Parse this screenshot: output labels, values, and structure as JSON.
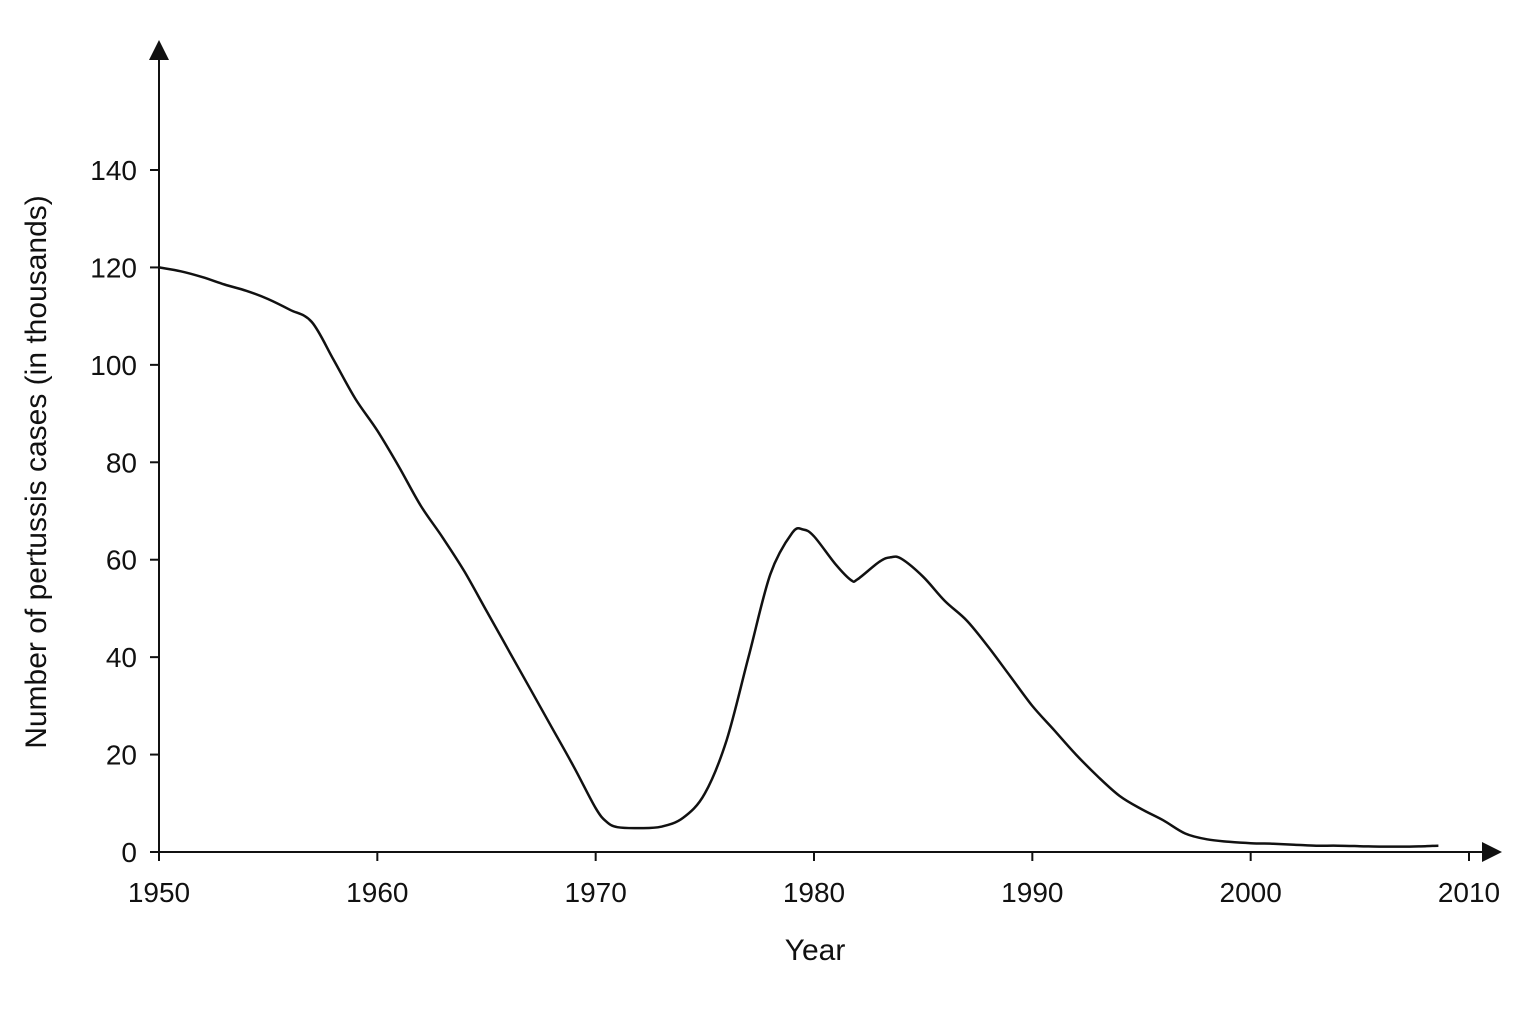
{
  "chart_data": {
    "type": "line",
    "title": "",
    "xlabel": "Year",
    "ylabel": "Number of pertussis cases (in thousands)",
    "xlim": [
      1950,
      2010
    ],
    "ylim": [
      0,
      140
    ],
    "x_ticks": [
      1950,
      1960,
      1970,
      1980,
      1990,
      2000,
      2010
    ],
    "y_ticks": [
      0,
      20,
      40,
      60,
      80,
      100,
      120,
      140
    ],
    "grid": false,
    "legend": "none",
    "line_color": "#111111",
    "series": [
      {
        "name": "",
        "points": [
          [
            1950,
            120
          ],
          [
            1951,
            119.2
          ],
          [
            1952,
            118
          ],
          [
            1953,
            116.5
          ],
          [
            1954,
            115.2
          ],
          [
            1955,
            113.5
          ],
          [
            1956,
            111.3
          ],
          [
            1957,
            108.8
          ],
          [
            1958,
            101
          ],
          [
            1959,
            93
          ],
          [
            1960,
            86.5
          ],
          [
            1961,
            79
          ],
          [
            1962,
            71
          ],
          [
            1963,
            64.5
          ],
          [
            1964,
            57.5
          ],
          [
            1965,
            49.5
          ],
          [
            1966,
            41.5
          ],
          [
            1967,
            33.5
          ],
          [
            1968,
            25.5
          ],
          [
            1969,
            17.5
          ],
          [
            1970,
            9
          ],
          [
            1970.5,
            6.2
          ],
          [
            1971,
            5.1
          ],
          [
            1972,
            4.9
          ],
          [
            1973,
            5.2
          ],
          [
            1974,
            7
          ],
          [
            1975,
            12
          ],
          [
            1976,
            23
          ],
          [
            1977,
            40
          ],
          [
            1978,
            57
          ],
          [
            1979,
            65.5
          ],
          [
            1979.5,
            66.2
          ],
          [
            1980,
            64.8
          ],
          [
            1981,
            59
          ],
          [
            1981.7,
            55.8
          ],
          [
            1982,
            56
          ],
          [
            1983,
            59.6
          ],
          [
            1983.5,
            60.5
          ],
          [
            1984,
            60.2
          ],
          [
            1985,
            56.5
          ],
          [
            1986,
            51.5
          ],
          [
            1987,
            47.5
          ],
          [
            1988,
            42
          ],
          [
            1989,
            36
          ],
          [
            1990,
            30
          ],
          [
            1991,
            25
          ],
          [
            1992,
            20
          ],
          [
            1993,
            15.5
          ],
          [
            1994,
            11.5
          ],
          [
            1995,
            8.8
          ],
          [
            1996,
            6.5
          ],
          [
            1997,
            3.8
          ],
          [
            1998,
            2.6
          ],
          [
            1999,
            2.1
          ],
          [
            2000,
            1.8
          ],
          [
            2001,
            1.7
          ],
          [
            2002,
            1.5
          ],
          [
            2003,
            1.3
          ],
          [
            2004,
            1.3
          ],
          [
            2005,
            1.2
          ],
          [
            2006,
            1.1
          ],
          [
            2007,
            1.1
          ],
          [
            2008,
            1.2
          ],
          [
            2008.6,
            1.3
          ]
        ]
      }
    ]
  }
}
